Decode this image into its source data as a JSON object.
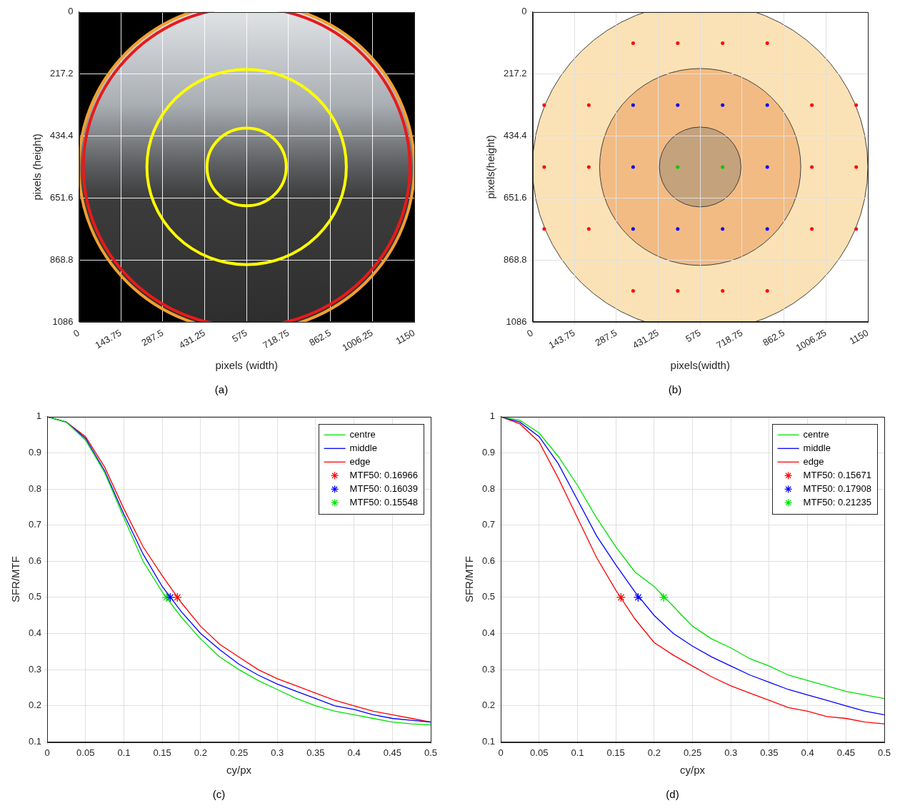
{
  "chart_data": [
    {
      "type": "image",
      "title": "(a)",
      "xlabel": "pixels (width)",
      "ylabel": "pixels (height)",
      "xlim": [
        0,
        1150
      ],
      "ylim": [
        1086,
        0
      ],
      "xticks": [
        0,
        143.75,
        287.5,
        431.25,
        575,
        718.75,
        862.5,
        1006.25,
        1150
      ],
      "yticks": [
        0,
        217.2,
        434.4,
        651.6,
        868.8,
        1086
      ],
      "grid": true,
      "circles": [
        {
          "cx": 575,
          "cy": 543,
          "r": 575,
          "color": "#f0a030"
        },
        {
          "cx": 575,
          "cy": 543,
          "r": 560,
          "color": "#e8191a"
        },
        {
          "cx": 575,
          "cy": 543,
          "r": 342,
          "color": "#ffff00"
        },
        {
          "cx": 575,
          "cy": 543,
          "r": 136,
          "color": "#ffff00"
        }
      ]
    },
    {
      "type": "scatter",
      "title": "(b)",
      "xlabel": "pixels(width)",
      "ylabel": "pixels(height)",
      "xlim": [
        0,
        1150
      ],
      "ylim": [
        1086,
        0
      ],
      "xticks": [
        0,
        143.75,
        287.5,
        431.25,
        575,
        718.75,
        862.5,
        1006.25,
        1150
      ],
      "yticks": [
        0,
        217.2,
        434.4,
        651.6,
        868.8,
        1086
      ],
      "grid": true,
      "circles": [
        {
          "cx": 575,
          "cy": 543,
          "r": 575,
          "color": "#fbe2b6"
        },
        {
          "cx": 575,
          "cy": 543,
          "r": 345,
          "color": "#f2bb84"
        },
        {
          "cx": 575,
          "cy": 543,
          "r": 140,
          "color": "#c4a27c"
        }
      ],
      "series": [
        {
          "color": "#ff0000",
          "marker": "circle",
          "x": [
            345,
            498,
            652,
            805,
            40,
            193,
            958,
            1110,
            40,
            193,
            958,
            1110,
            40,
            193,
            958,
            1110,
            345,
            498,
            652,
            805
          ],
          "values": [
            109,
            109,
            109,
            109,
            326,
            326,
            326,
            326,
            543,
            543,
            543,
            543,
            760,
            760,
            760,
            760,
            977,
            977,
            977,
            977
          ]
        },
        {
          "color": "#0000ff",
          "marker": "circle",
          "x": [
            345,
            498,
            652,
            805,
            345,
            805,
            345,
            498,
            652,
            805
          ],
          "values": [
            326,
            326,
            326,
            326,
            543,
            543,
            760,
            760,
            760,
            760
          ]
        },
        {
          "color": "#00c800",
          "marker": "circle",
          "x": [
            498,
            652
          ],
          "values": [
            543,
            543
          ]
        }
      ]
    },
    {
      "type": "line",
      "title": "(c)",
      "xlabel": "cy/px",
      "ylabel": "SFR/MTF",
      "xlim": [
        0,
        0.5
      ],
      "ylim": [
        0.1,
        1
      ],
      "xticks": [
        0,
        0.05,
        0.1,
        0.15,
        0.2,
        0.25,
        0.3,
        0.35,
        0.4,
        0.45,
        0.5
      ],
      "yticks": [
        0.1,
        0.2,
        0.3,
        0.4,
        0.5,
        0.6,
        0.7,
        0.8,
        0.9,
        1
      ],
      "grid": true,
      "legend": "upper right",
      "x": [
        0,
        0.025,
        0.05,
        0.075,
        0.1,
        0.125,
        0.15,
        0.175,
        0.2,
        0.225,
        0.25,
        0.275,
        0.3,
        0.325,
        0.35,
        0.375,
        0.4,
        0.425,
        0.45,
        0.475,
        0.5
      ],
      "series": [
        {
          "name": "centre",
          "color": "#00e000",
          "values": [
            1,
            0.985,
            0.935,
            0.845,
            0.72,
            0.6,
            0.515,
            0.445,
            0.385,
            0.335,
            0.3,
            0.27,
            0.245,
            0.22,
            0.2,
            0.185,
            0.175,
            0.165,
            0.155,
            0.15,
            0.147
          ]
        },
        {
          "name": "middle",
          "color": "#0000ff",
          "values": [
            1,
            0.985,
            0.94,
            0.85,
            0.73,
            0.62,
            0.53,
            0.46,
            0.4,
            0.355,
            0.315,
            0.285,
            0.26,
            0.24,
            0.22,
            0.2,
            0.19,
            0.175,
            0.165,
            0.16,
            0.155
          ]
        },
        {
          "name": "edge",
          "color": "#ff0000",
          "values": [
            1,
            0.985,
            0.945,
            0.86,
            0.745,
            0.64,
            0.56,
            0.485,
            0.42,
            0.37,
            0.335,
            0.3,
            0.275,
            0.255,
            0.235,
            0.215,
            0.2,
            0.185,
            0.175,
            0.165,
            0.155
          ]
        },
        {
          "name": "MTF50: 0.16966",
          "type": "scatter",
          "marker": "star",
          "color": "#ff0000",
          "x": [
            0.16966
          ],
          "values": [
            0.5
          ]
        },
        {
          "name": "MTF50: 0.16039",
          "type": "scatter",
          "marker": "star",
          "color": "#0000ff",
          "x": [
            0.16039
          ],
          "values": [
            0.5
          ]
        },
        {
          "name": "MTF50: 0.15548",
          "type": "scatter",
          "marker": "star",
          "color": "#00e000",
          "x": [
            0.15548
          ],
          "values": [
            0.5
          ]
        }
      ]
    },
    {
      "type": "line",
      "title": "(d)",
      "xlabel": "cy/px",
      "ylabel": "SFR/MTF",
      "xlim": [
        0,
        0.5
      ],
      "ylim": [
        0.1,
        1
      ],
      "xticks": [
        0,
        0.05,
        0.1,
        0.15,
        0.2,
        0.25,
        0.3,
        0.35,
        0.4,
        0.45,
        0.5
      ],
      "yticks": [
        0.1,
        0.2,
        0.3,
        0.4,
        0.5,
        0.6,
        0.7,
        0.8,
        0.9,
        1
      ],
      "grid": true,
      "legend": "upper right",
      "x": [
        0,
        0.025,
        0.05,
        0.075,
        0.1,
        0.125,
        0.15,
        0.175,
        0.2,
        0.225,
        0.25,
        0.275,
        0.3,
        0.325,
        0.35,
        0.375,
        0.4,
        0.425,
        0.45,
        0.475,
        0.5
      ],
      "series": [
        {
          "name": "centre",
          "color": "#00e000",
          "values": [
            1,
            0.99,
            0.955,
            0.89,
            0.81,
            0.72,
            0.64,
            0.57,
            0.53,
            0.475,
            0.42,
            0.385,
            0.36,
            0.33,
            0.31,
            0.285,
            0.27,
            0.255,
            0.24,
            0.23,
            0.22
          ]
        },
        {
          "name": "middle",
          "color": "#0000ff",
          "values": [
            1,
            0.985,
            0.945,
            0.87,
            0.77,
            0.67,
            0.59,
            0.515,
            0.45,
            0.4,
            0.365,
            0.335,
            0.31,
            0.285,
            0.265,
            0.245,
            0.23,
            0.215,
            0.2,
            0.185,
            0.175
          ]
        },
        {
          "name": "edge",
          "color": "#ff0000",
          "values": [
            1,
            0.98,
            0.93,
            0.83,
            0.72,
            0.61,
            0.52,
            0.44,
            0.375,
            0.34,
            0.31,
            0.28,
            0.255,
            0.235,
            0.215,
            0.195,
            0.185,
            0.17,
            0.165,
            0.155,
            0.15
          ]
        },
        {
          "name": "MTF50: 0.15671",
          "type": "scatter",
          "marker": "star",
          "color": "#ff0000",
          "x": [
            0.15671
          ],
          "values": [
            0.5
          ]
        },
        {
          "name": "MTF50: 0.17908",
          "type": "scatter",
          "marker": "star",
          "color": "#0000ff",
          "x": [
            0.17908
          ],
          "values": [
            0.5
          ]
        },
        {
          "name": "MTF50: 0.21235",
          "type": "scatter",
          "marker": "star",
          "color": "#00e000",
          "x": [
            0.21235
          ],
          "values": [
            0.5
          ]
        }
      ]
    }
  ]
}
